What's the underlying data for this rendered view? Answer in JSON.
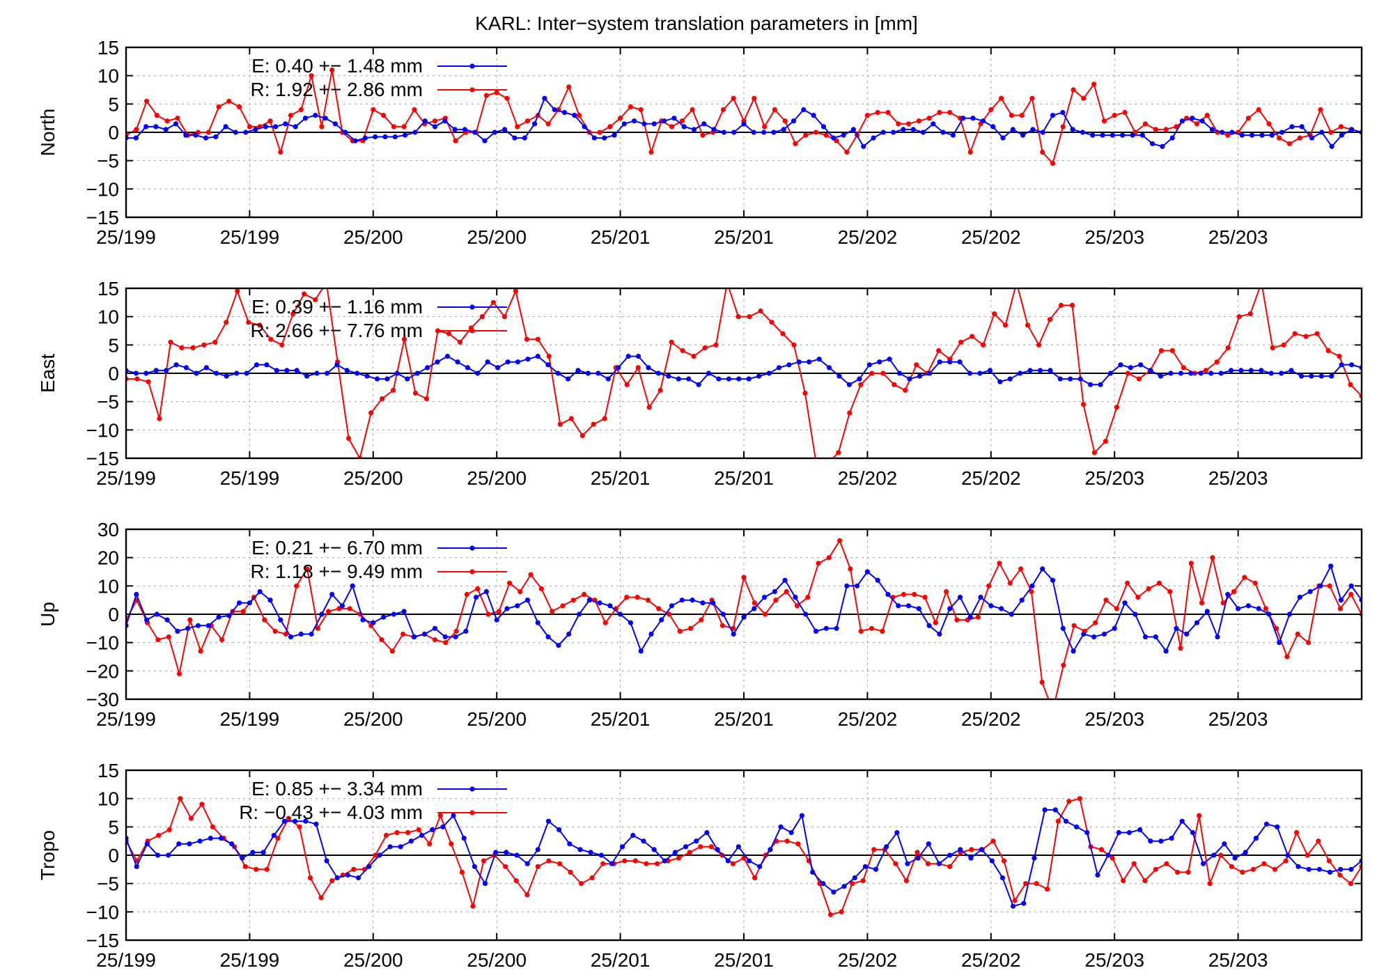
{
  "title": "KARL: Inter−system translation parameters in [mm]",
  "colors": {
    "E": "#0000ff",
    "R": "#ff0000",
    "axis": "#000000",
    "grid": "#a0a0a0"
  },
  "chart_data": [
    {
      "type": "line",
      "panel": "North",
      "ylabel": "North",
      "ylim": [
        -15,
        15
      ],
      "yticks": [
        "15",
        "10",
        "5",
        "0",
        "−5",
        "−10",
        "−15"
      ],
      "ytick_values": [
        15,
        10,
        5,
        0,
        -5,
        -10,
        -15
      ],
      "xticks": [
        "25/199",
        "25/199",
        "25/200",
        "25/200",
        "25/201",
        "25/201",
        "25/202",
        "25/202",
        "25/203",
        "25/203"
      ],
      "series": [
        {
          "name": "E",
          "legend": "E:   0.40 +− 1.48 mm",
          "color": "#0000ff",
          "values": [
            -1,
            -1,
            1,
            1,
            0.5,
            1.5,
            -0.5,
            -0.5,
            -1,
            -0.8,
            1,
            0,
            0,
            0.5,
            1,
            1,
            1.5,
            1,
            2.5,
            3,
            2.5,
            1.5,
            0,
            -1.5,
            -1,
            -0.8,
            -0.8,
            -0.8,
            -0.5,
            0,
            2,
            1,
            2,
            0.5,
            0.5,
            0,
            -1.5,
            0,
            0.5,
            -1,
            -1,
            1.5,
            6,
            4,
            3.5,
            3,
            1,
            -1,
            -1,
            -0.5,
            1.5,
            2,
            1.5,
            1.5,
            2,
            2.5,
            1,
            0.5,
            1.5,
            0.5,
            0,
            0,
            1.5,
            0,
            0,
            0,
            0.5,
            2,
            4,
            3,
            1,
            -1,
            -0.5,
            0.5,
            -2.5,
            -1,
            0,
            0,
            0.5,
            0.5,
            0,
            1.5,
            0,
            -0.5,
            2.5,
            2.5,
            2,
            1,
            -1,
            0.5,
            -0.5,
            0.5,
            0,
            3,
            3.5,
            0.5,
            0,
            -0.5,
            -0.5,
            -0.5,
            -0.5,
            -0.5,
            -0.5,
            -2,
            -2.5,
            -1,
            2,
            2.5,
            2,
            0.5,
            0,
            0,
            -0.5,
            -0.5,
            -0.5,
            -0.5,
            0,
            1,
            1,
            -1,
            0,
            -2.5,
            -0.5,
            0.5,
            0
          ]
        },
        {
          "name": "R",
          "legend": "R:   1.92 +− 2.86 mm",
          "color": "#ff0000",
          "values": [
            -0.5,
            0.5,
            5.5,
            3,
            2,
            2.5,
            -0.5,
            0,
            0,
            4.5,
            5.5,
            4.5,
            1,
            1,
            2,
            -3.5,
            3,
            4,
            10,
            1,
            11,
            0,
            -1.5,
            -1.5,
            4,
            3,
            1,
            1,
            4,
            1.5,
            2,
            2.5,
            -1.5,
            0,
            0,
            6.5,
            7,
            6,
            1,
            2,
            3,
            1.5,
            4,
            8,
            3,
            0,
            0,
            1,
            2.5,
            4.5,
            4,
            -3.5,
            2,
            1,
            2,
            4,
            -0.5,
            0,
            4,
            6,
            2,
            6,
            1,
            4,
            2,
            -2,
            -0.5,
            0,
            -0.5,
            -1.5,
            -3.5,
            -0.5,
            3,
            3.5,
            3.5,
            1.5,
            1.5,
            2,
            2.5,
            3.5,
            3.5,
            2.5,
            -3.5,
            1.5,
            4,
            6,
            3,
            3,
            6,
            -3.5,
            -5.5,
            1,
            7.5,
            6,
            8.5,
            2,
            3,
            3.5,
            0,
            1.5,
            0.5,
            0.5,
            1,
            2.5,
            1.5,
            3,
            0,
            -0.5,
            0,
            2.5,
            4,
            1.5,
            -1,
            -2,
            -1,
            -0.5,
            4,
            0,
            1,
            0.5,
            0
          ]
        }
      ]
    },
    {
      "type": "line",
      "panel": "East",
      "ylabel": "East",
      "ylim": [
        -15,
        15
      ],
      "yticks": [
        "15",
        "10",
        "5",
        "0",
        "−5",
        "−10",
        "−15"
      ],
      "ytick_values": [
        15,
        10,
        5,
        0,
        -5,
        -10,
        -15
      ],
      "xticks": [
        "25/199",
        "25/199",
        "25/200",
        "25/200",
        "25/201",
        "25/201",
        "25/202",
        "25/202",
        "25/203",
        "25/203"
      ],
      "series": [
        {
          "name": "E",
          "legend": "E:   0.39 +− 1.16 mm",
          "color": "#0000ff",
          "values": [
            0.5,
            0,
            0,
            0.5,
            0.5,
            1.5,
            1,
            0,
            1,
            0,
            -0.5,
            0,
            0,
            1.5,
            1.5,
            0.5,
            0.5,
            0.5,
            -0.5,
            0,
            0,
            1.5,
            0.5,
            0,
            -0.5,
            -1,
            -1,
            0,
            -1,
            0,
            1,
            2,
            3,
            2,
            1,
            0,
            2,
            1,
            2,
            2,
            2.5,
            3,
            1.5,
            0,
            -1,
            0.5,
            0,
            0,
            -1,
            1,
            3,
            3,
            1,
            0,
            -0.5,
            -1,
            -1,
            -2,
            0,
            -1,
            -1,
            -1,
            -1,
            -0.5,
            0,
            1,
            1.5,
            2,
            2,
            2.5,
            1,
            -0.5,
            -2,
            -1,
            1.5,
            2,
            2.5,
            0,
            -1,
            -0.5,
            0,
            2,
            2,
            2,
            0,
            0,
            0.5,
            -1.5,
            -1,
            0,
            0.5,
            0.5,
            0.5,
            -1,
            -1,
            -1,
            -2,
            -2,
            0,
            1.5,
            1,
            1.5,
            0.5,
            -0.5,
            0,
            0,
            0,
            0,
            0,
            0,
            0.5,
            0.5,
            0.5,
            0.5,
            0,
            0,
            0.5,
            -0.5,
            -0.5,
            -0.5,
            -0.5,
            1.5,
            1.5,
            1
          ]
        },
        {
          "name": "R",
          "legend": "R:   2.66 +− 7.76 mm",
          "color": "#ff0000",
          "values": [
            -1,
            -1,
            -1.5,
            -8,
            5.5,
            4.5,
            4.5,
            5,
            5.5,
            9,
            14.5,
            9,
            8.5,
            6,
            5,
            10.5,
            14,
            13,
            16,
            2,
            -11.5,
            -15,
            -7,
            -4.5,
            -3,
            6,
            -3.5,
            -4.5,
            7.5,
            7,
            5.5,
            8,
            10,
            12.5,
            10,
            14.5,
            6,
            6,
            3,
            -9,
            -8,
            -11,
            -9,
            -8,
            1,
            -2,
            1,
            -6,
            -3,
            5.5,
            4,
            3,
            4.5,
            5,
            16,
            10,
            10,
            11,
            9,
            7,
            5,
            -3.5,
            -16,
            -16,
            -14,
            -7,
            -2,
            0,
            0,
            -2,
            -3,
            1.5,
            0,
            4,
            2.5,
            5.5,
            6.5,
            5,
            10.5,
            8.5,
            16,
            8.5,
            5,
            9.5,
            12,
            12,
            -5.5,
            -14,
            -12,
            -6,
            0,
            -1,
            0.5,
            4,
            4,
            1,
            0,
            0.5,
            2,
            4.5,
            10,
            10.5,
            16,
            4.5,
            5,
            7,
            6.5,
            7,
            4,
            3,
            -2,
            -4
          ]
        }
      ]
    },
    {
      "type": "line",
      "panel": "Up",
      "ylabel": "Up",
      "ylim": [
        -30,
        30
      ],
      "yticks": [
        "30",
        "20",
        "10",
        "0",
        "−10",
        "−20",
        "−30"
      ],
      "ytick_values": [
        30,
        20,
        10,
        0,
        -10,
        -20,
        -30
      ],
      "xticks": [
        "25/199",
        "25/199",
        "25/200",
        "25/200",
        "25/201",
        "25/201",
        "25/202",
        "25/202",
        "25/203",
        "25/203"
      ],
      "series": [
        {
          "name": "E",
          "legend": "E:   0.21 +− 6.70 mm",
          "color": "#0000ff",
          "values": [
            -4,
            7,
            -2,
            0,
            -2,
            -6,
            -5,
            -4,
            -4,
            -1,
            -0.5,
            4,
            4,
            8,
            5,
            -2,
            -8,
            -7,
            -7,
            0,
            7,
            3,
            10,
            -2,
            -3,
            -1,
            0,
            1,
            -8,
            -7,
            -5,
            -8,
            -8,
            -6,
            6,
            8,
            -2,
            2,
            3,
            5,
            -3,
            -8,
            -11,
            -7,
            0,
            5,
            4,
            3,
            0,
            -3,
            -13,
            -7,
            -2,
            3,
            5,
            5,
            4,
            4,
            0,
            -7,
            -1,
            2,
            6,
            8,
            12,
            6,
            0,
            -6,
            -5,
            -5,
            10,
            10,
            15,
            12,
            7,
            3,
            3,
            2,
            -4,
            -7,
            2,
            6,
            -1,
            6,
            3,
            2,
            0,
            5,
            10,
            16,
            12,
            -5,
            -13,
            -7,
            -8,
            -7,
            -5,
            4,
            0,
            -8,
            -8,
            -13,
            -5,
            -7,
            -3,
            1,
            -8,
            7,
            2,
            3,
            2,
            0,
            -10,
            0,
            6,
            8,
            10,
            17,
            5,
            10,
            5
          ]
        },
        {
          "name": "R",
          "legend": "R:   1.18 +− 9.49 mm",
          "color": "#ff0000",
          "values": [
            -2,
            5,
            -3,
            -9,
            -8,
            -21,
            -2,
            -13,
            -4,
            -9,
            1,
            1,
            6,
            -2,
            -6,
            -7,
            10,
            16,
            -5,
            1,
            2,
            2,
            0,
            -4,
            -9,
            -13,
            -7,
            -8,
            -7,
            -9,
            -10,
            -6,
            7,
            9,
            0,
            1,
            11,
            8,
            14,
            9,
            1,
            3,
            5,
            7,
            5,
            -3,
            2,
            6,
            6,
            5,
            2,
            0,
            -6,
            -5,
            -2,
            5,
            -4,
            -5,
            13,
            4,
            0,
            5,
            8,
            3,
            6,
            18,
            20,
            26,
            16,
            -6,
            -5,
            -6,
            6,
            7,
            7,
            6,
            -3,
            8,
            -2,
            -2,
            -1,
            10,
            18,
            11,
            16,
            8,
            -24,
            -34,
            -18,
            -4,
            -6,
            -3,
            5,
            2,
            11,
            6,
            9,
            11,
            8,
            -12,
            18,
            4,
            20,
            4,
            8,
            13,
            11,
            2,
            -5,
            -15,
            -7,
            -10,
            10,
            10,
            2,
            7,
            0
          ]
        }
      ]
    },
    {
      "type": "line",
      "panel": "Tropo",
      "ylabel": "Tropo",
      "ylim": [
        -15,
        15
      ],
      "yticks": [
        "15",
        "10",
        "5",
        "0",
        "−5",
        "−10",
        "−15"
      ],
      "ytick_values": [
        15,
        10,
        5,
        0,
        -5,
        -10,
        -15
      ],
      "xticks": [
        "25/199",
        "25/199",
        "25/200",
        "25/200",
        "25/201",
        "25/201",
        "25/202",
        "25/202",
        "25/203",
        "25/203"
      ],
      "series": [
        {
          "name": "E",
          "legend": "E:   0.85 +− 3.34 mm",
          "color": "#0000ff",
          "values": [
            3,
            -2,
            2,
            0,
            0,
            2,
            2,
            2.5,
            3,
            3,
            2,
            -0.5,
            0.5,
            0.5,
            3.5,
            6,
            6,
            6,
            5.5,
            -1,
            -4,
            -3.5,
            -4,
            -2,
            0,
            1.5,
            1.5,
            2.5,
            3.5,
            4.5,
            5,
            7,
            3,
            -2,
            -5,
            0.5,
            0.5,
            0,
            -1.5,
            1,
            6,
            4.5,
            2,
            1,
            0.5,
            0,
            -1.5,
            1.5,
            3.5,
            2.5,
            1,
            -1,
            0.5,
            1.5,
            2.5,
            4,
            1,
            -1,
            1.5,
            -1,
            -2,
            1,
            5,
            4,
            7,
            -3,
            -5,
            -6.5,
            -5.5,
            -4,
            -2,
            -2.5,
            1.5,
            4,
            -1.5,
            -0.5,
            2,
            -1.5,
            0,
            1,
            -0.5,
            1,
            -1,
            -4,
            -9,
            -8.5,
            -0.5,
            8,
            8,
            6,
            5,
            4,
            -3.5,
            0,
            4,
            4,
            4.5,
            2.5,
            2.5,
            3,
            6,
            4,
            -1.5,
            0,
            2,
            -0.5,
            0.5,
            3,
            5.5,
            5,
            0,
            -2,
            -2.5,
            -2.5,
            -3,
            -2.5,
            -2.5,
            -1
          ]
        },
        {
          "name": "R",
          "legend": "R:   −0.43 +− 4.03 mm",
          "color": "#ff0000",
          "values": [
            2.5,
            -1,
            2.5,
            3.5,
            4.5,
            10,
            6.5,
            9,
            5,
            3,
            1.5,
            -2,
            -2.5,
            -2.5,
            3,
            6.5,
            5,
            -4,
            -7.5,
            -4.5,
            -3.5,
            -2.5,
            -2.5,
            0,
            3.5,
            4,
            4,
            4.5,
            2,
            7,
            2,
            -3,
            -9,
            -1,
            0,
            -2,
            -4.5,
            -7,
            -2,
            -1,
            -1.5,
            -3,
            -5,
            -4,
            -1.5,
            -1.5,
            -1,
            -1,
            -1.5,
            -1.5,
            -1,
            -0.5,
            0.5,
            1.5,
            1.5,
            0,
            -1.5,
            -0.5,
            -4,
            0,
            2.5,
            2.5,
            2,
            -1,
            -5,
            -10.5,
            -10,
            -5,
            -4.5,
            1,
            1,
            -1.5,
            -4.5,
            0.5,
            -1.5,
            -1.5,
            -2,
            0.5,
            1,
            1,
            2.5,
            -1,
            -8,
            -5,
            -5,
            -6,
            6,
            9.5,
            10,
            1.5,
            1,
            -0.5,
            -4.5,
            -1.5,
            -4.5,
            -2.5,
            -1.5,
            -3,
            -3,
            7,
            -5,
            0,
            -2,
            -3,
            -2.5,
            -1.5,
            -2.5,
            -1,
            4,
            0,
            2.5,
            -1,
            -3.5,
            -5,
            -2
          ]
        }
      ]
    }
  ]
}
